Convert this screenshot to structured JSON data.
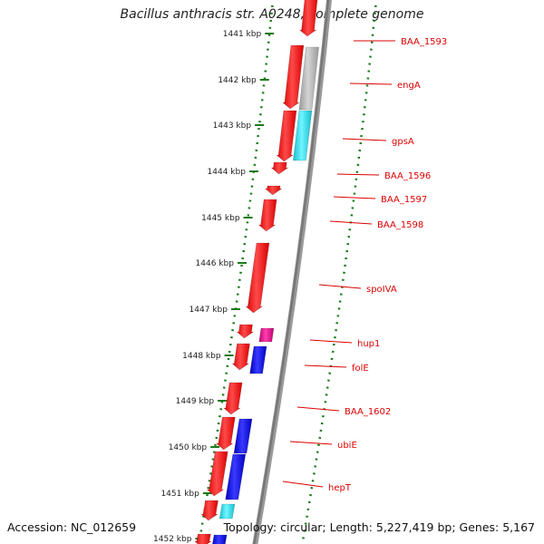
{
  "title": "Bacillus anthracis str. A0248, complete genome",
  "accession_text": "Accession: NC_012659",
  "summary_text": "Topology: circular; Length: 5,227,419 bp; Genes: 5,167",
  "colors": {
    "forward_strand": "#ff1a1a",
    "backbone": "#777777",
    "tick": "#1a7a1a",
    "label": "#dd0000",
    "gray_feature": "#bbbbbb",
    "cyan_feature": "#20e0f0",
    "blue_feature": "#1010ee",
    "magenta_feature": "#e01890"
  },
  "ticks": [
    "1441 kbp",
    "1442 kbp",
    "1443 kbp",
    "1444 kbp",
    "1445 kbp",
    "1446 kbp",
    "1447 kbp",
    "1448 kbp",
    "1449 kbp",
    "1450 kbp",
    "1451 kbp",
    "1452 kbp"
  ],
  "gene_labels": [
    "BAA_1593",
    "engA",
    "gpsA",
    "BAA_1596",
    "BAA_1597",
    "BAA_1598",
    "spoIVA",
    "hup1",
    "folE",
    "BAA_1602",
    "ubiE",
    "hepT"
  ]
}
